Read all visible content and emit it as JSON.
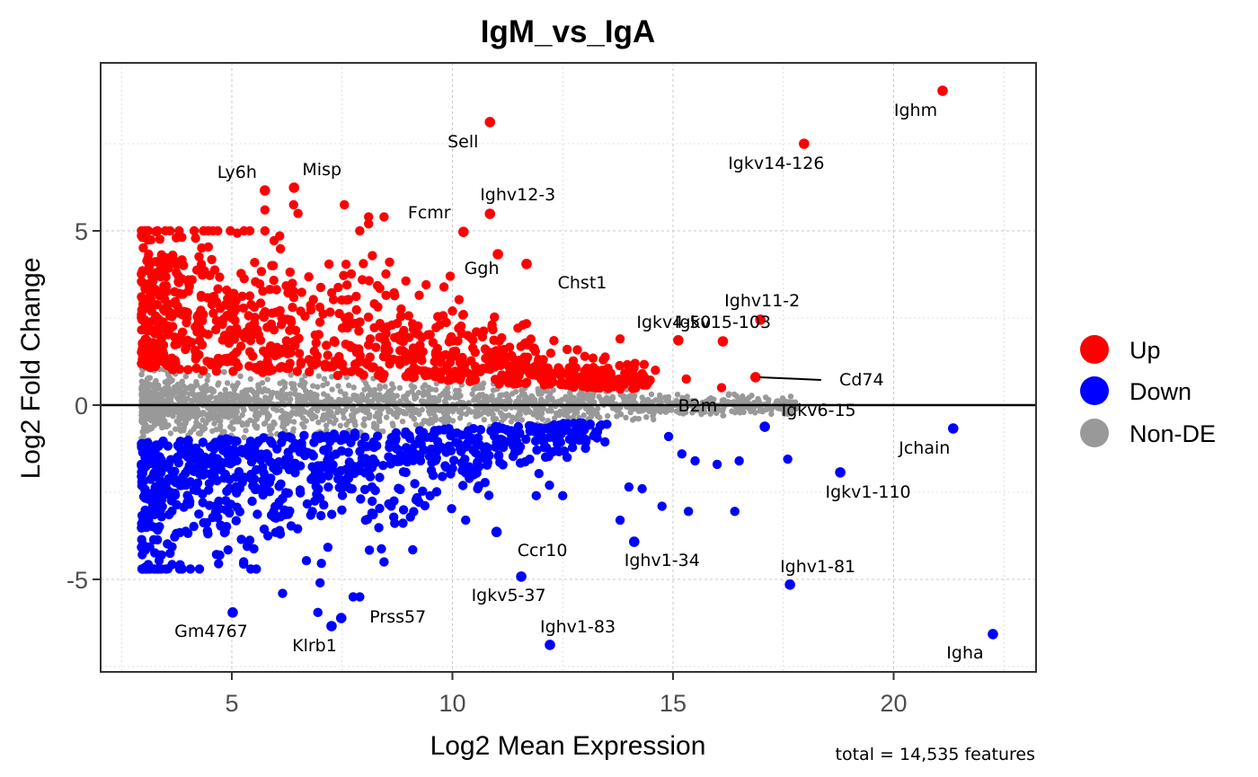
{
  "chart_data": {
    "type": "scatter",
    "subtype": "MA-plot",
    "title": "IgM_vs_IgA",
    "xlabel": "Log2 Mean Expression",
    "ylabel": "Log2 Fold Change",
    "caption": "total = 14,535 features",
    "xlim": [
      2.2,
      23.4
    ],
    "ylim": [
      -7.7,
      9.8
    ],
    "x_ticks": [
      5,
      10,
      15,
      20
    ],
    "x_tick_labels": [
      "5",
      "10",
      "15",
      "20"
    ],
    "y_ticks": [
      -5,
      0,
      5
    ],
    "y_tick_labels": [
      "-5",
      "0",
      "5"
    ],
    "x_minor_ticks": [
      2.5,
      7.5,
      12.5,
      17.5,
      22.5
    ],
    "y_minor_ticks": [
      -7.5,
      -2.5,
      2.5,
      7.5
    ],
    "grid": true,
    "hline": 0,
    "legend": {
      "position": "right",
      "entries": [
        {
          "name": "Up",
          "color": "#ff0000"
        },
        {
          "name": "Down",
          "color": "#0000ff"
        },
        {
          "name": "Non-DE",
          "color": "#999999"
        }
      ]
    },
    "colors": {
      "Up": "#ff0000",
      "Down": "#0000ff",
      "Non-DE": "#999999"
    },
    "total_features": 14535,
    "background_distribution": {
      "note": "approximate unlabelled point cloud",
      "non_de_count": 1800,
      "up_count": 900,
      "down_count": 800,
      "x_range": [
        2.9,
        17.3
      ]
    },
    "labeled_points": [
      {
        "gene": "Ighm",
        "x": 21.11,
        "y": 9.02,
        "group": "Up"
      },
      {
        "gene": "Igkv14-126",
        "x": 17.97,
        "y": 7.5,
        "group": "Up"
      },
      {
        "gene": "Sell",
        "x": 10.85,
        "y": 8.12,
        "group": "Up"
      },
      {
        "gene": "Ly6h",
        "x": 5.75,
        "y": 6.16,
        "group": "Up"
      },
      {
        "gene": "Misp",
        "x": 6.41,
        "y": 6.24,
        "group": "Up"
      },
      {
        "gene": "Ighv12-3",
        "x": 10.85,
        "y": 5.49,
        "group": "Up"
      },
      {
        "gene": "Fcmr",
        "x": 10.25,
        "y": 4.97,
        "group": "Up"
      },
      {
        "gene": "Ggh",
        "x": 11.03,
        "y": 4.33,
        "group": "Up"
      },
      {
        "gene": "Chst1",
        "x": 11.68,
        "y": 4.05,
        "group": "Up"
      },
      {
        "gene": "Ighv11-2",
        "x": 16.98,
        "y": 2.45,
        "group": "Up"
      },
      {
        "gene": "Igkv4-50",
        "x": 15.12,
        "y": 1.86,
        "group": "Up"
      },
      {
        "gene": "Igkv15-103",
        "x": 16.13,
        "y": 1.83,
        "group": "Up"
      },
      {
        "gene": "Cd74",
        "x": 16.87,
        "y": 0.8,
        "group": "Up"
      },
      {
        "gene": "B2m",
        "x": 15.05,
        "y": 0.0,
        "group": "Non-DE"
      },
      {
        "gene": "Igkv6-15",
        "x": 17.08,
        "y": -0.62,
        "group": "Down"
      },
      {
        "gene": "Jchain",
        "x": 21.35,
        "y": -0.67,
        "group": "Down"
      },
      {
        "gene": "Igkv1-110",
        "x": 18.79,
        "y": -1.93,
        "group": "Down"
      },
      {
        "gene": "Ighv1-34",
        "x": 14.12,
        "y": -3.92,
        "group": "Down"
      },
      {
        "gene": "Ccr10",
        "x": 11.0,
        "y": -3.64,
        "group": "Down"
      },
      {
        "gene": "Igkv5-37",
        "x": 11.56,
        "y": -4.92,
        "group": "Down"
      },
      {
        "gene": "Ighv1-81",
        "x": 17.65,
        "y": -5.15,
        "group": "Down"
      },
      {
        "gene": "Ighv1-83",
        "x": 12.21,
        "y": -6.88,
        "group": "Down"
      },
      {
        "gene": "Prss57",
        "x": 7.48,
        "y": -6.11,
        "group": "Down"
      },
      {
        "gene": "Klrb1",
        "x": 7.26,
        "y": -6.34,
        "group": "Down"
      },
      {
        "gene": "Gm4767",
        "x": 5.02,
        "y": -5.95,
        "group": "Down"
      },
      {
        "gene": "Igha",
        "x": 22.25,
        "y": -6.57,
        "group": "Down"
      }
    ],
    "extra_points": [
      {
        "x": 5.75,
        "y": 5.6,
        "group": "Up"
      },
      {
        "x": 5.75,
        "y": 5.0,
        "group": "Up"
      },
      {
        "x": 6.4,
        "y": 5.75,
        "group": "Up"
      },
      {
        "x": 6.5,
        "y": 5.5,
        "group": "Up"
      },
      {
        "x": 7.55,
        "y": 5.75,
        "group": "Up"
      },
      {
        "x": 8.1,
        "y": 5.4,
        "group": "Up"
      },
      {
        "x": 8.1,
        "y": 5.2,
        "group": "Up"
      },
      {
        "x": 8.45,
        "y": 5.4,
        "group": "Up"
      },
      {
        "x": 7.9,
        "y": 5.0,
        "group": "Up"
      },
      {
        "x": 9.95,
        "y": 3.7,
        "group": "Up"
      },
      {
        "x": 10.0,
        "y": 2.7,
        "group": "Up"
      },
      {
        "x": 10.25,
        "y": 2.6,
        "group": "Up"
      },
      {
        "x": 11.6,
        "y": 2.3,
        "group": "Up"
      },
      {
        "x": 12.3,
        "y": 1.85,
        "group": "Up"
      },
      {
        "x": 12.6,
        "y": 1.6,
        "group": "Up"
      },
      {
        "x": 13.0,
        "y": 1.4,
        "group": "Up"
      },
      {
        "x": 13.8,
        "y": 1.9,
        "group": "Up"
      },
      {
        "x": 14.3,
        "y": 0.9,
        "group": "Up"
      },
      {
        "x": 14.6,
        "y": 1.0,
        "group": "Up"
      },
      {
        "x": 15.3,
        "y": 0.75,
        "group": "Up"
      },
      {
        "x": 16.1,
        "y": 0.5,
        "group": "Up"
      },
      {
        "x": 13.9,
        "y": 0.6,
        "group": "Up"
      },
      {
        "x": 13.3,
        "y": 0.55,
        "group": "Up"
      },
      {
        "x": 14.9,
        "y": -0.9,
        "group": "Down"
      },
      {
        "x": 15.2,
        "y": -1.4,
        "group": "Down"
      },
      {
        "x": 16.5,
        "y": -1.6,
        "group": "Down"
      },
      {
        "x": 17.6,
        "y": -1.55,
        "group": "Down"
      },
      {
        "x": 16.4,
        "y": -3.05,
        "group": "Down"
      },
      {
        "x": 15.35,
        "y": -3.05,
        "group": "Down"
      },
      {
        "x": 14.75,
        "y": -2.9,
        "group": "Down"
      },
      {
        "x": 14.0,
        "y": -2.35,
        "group": "Down"
      },
      {
        "x": 13.8,
        "y": -3.3,
        "group": "Down"
      },
      {
        "x": 16.0,
        "y": -1.7,
        "group": "Down"
      },
      {
        "x": 15.5,
        "y": -1.6,
        "group": "Down"
      },
      {
        "x": 14.3,
        "y": -2.4,
        "group": "Down"
      },
      {
        "x": 13.5,
        "y": -0.55,
        "group": "Down"
      },
      {
        "x": 12.6,
        "y": -1.5,
        "group": "Down"
      },
      {
        "x": 12.2,
        "y": -2.3,
        "group": "Down"
      },
      {
        "x": 11.9,
        "y": -2.6,
        "group": "Down"
      },
      {
        "x": 12.5,
        "y": -2.6,
        "group": "Down"
      },
      {
        "x": 11.5,
        "y": -1.3,
        "group": "Down"
      },
      {
        "x": 11.75,
        "y": -1.55,
        "group": "Down"
      },
      {
        "x": 10.3,
        "y": -3.3,
        "group": "Down"
      },
      {
        "x": 10.8,
        "y": -1.65,
        "group": "Down"
      },
      {
        "x": 9.1,
        "y": -4.15,
        "group": "Down"
      },
      {
        "x": 8.45,
        "y": -4.5,
        "group": "Down"
      },
      {
        "x": 7.9,
        "y": -5.5,
        "group": "Down"
      },
      {
        "x": 7.75,
        "y": -5.5,
        "group": "Down"
      },
      {
        "x": 7.0,
        "y": -5.1,
        "group": "Down"
      },
      {
        "x": 6.15,
        "y": -5.4,
        "group": "Down"
      },
      {
        "x": 6.95,
        "y": -5.95,
        "group": "Down"
      },
      {
        "x": 4.7,
        "y": -4.55,
        "group": "Down"
      },
      {
        "x": 3.55,
        "y": -4.7,
        "group": "Down"
      },
      {
        "x": 3.35,
        "y": -4.3,
        "group": "Down"
      },
      {
        "x": 3.6,
        "y": -4.25,
        "group": "Down"
      }
    ]
  }
}
